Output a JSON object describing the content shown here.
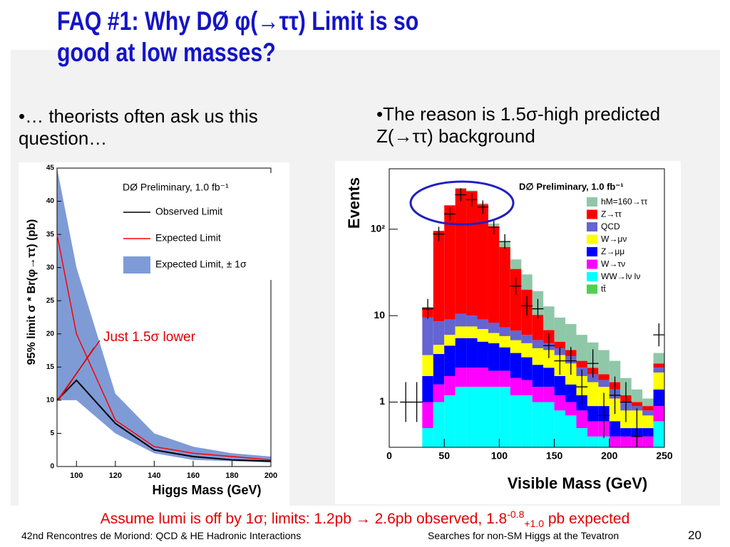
{
  "slide": {
    "title": [
      "FAQ #1: Why DØ φ(→ττ) Limit is so",
      "good at low masses?"
    ],
    "left_bullet": "•… theorists often ask us this question…",
    "right_bullet": "•The reason is 1.5σ-high predicted Z(→ττ) background",
    "note": {
      "main": "Assume lumi is off by 1σ; limits: 1.2pb → 2.6pb observed, 1.8",
      "sup": "-0.8",
      "sub": "+1.0",
      "end": " pb expected"
    },
    "footer_left": "42nd Rencontres de Moriond: QCD & HE Hadronic Interactions",
    "footer_center": "Searches for non-SM Higgs at the Tevatron",
    "page_number": 20
  },
  "chart_data": [
    {
      "type": "line",
      "legend_title": "DØ Preliminary, 1.0 fb⁻¹",
      "x_label": "Higgs Mass (GeV)",
      "y_label": "95% limit σ * Br(φ→ττ) (pb)",
      "annotation": "Just 1.5σ lower",
      "x": [
        90,
        100,
        120,
        140,
        160,
        180,
        200
      ],
      "series": [
        {
          "name": "Observed Limit",
          "color": "#000000",
          "values": [
            10,
            13,
            6.5,
            2.5,
            1.5,
            1,
            0.8
          ]
        },
        {
          "name": "Expected Limit",
          "color": "#ff0000",
          "values": [
            35,
            20,
            7,
            3,
            2,
            1.5,
            1
          ]
        },
        {
          "name": "Expected Limit, ± 1σ",
          "color": "#7f9bd6",
          "lower": [
            10,
            10,
            5,
            2,
            1,
            0.8,
            0.6
          ],
          "upper": [
            45,
            30,
            11,
            5,
            3,
            2,
            1.5
          ]
        }
      ],
      "xlim": [
        90,
        200
      ],
      "xticks": [
        100,
        120,
        140,
        160,
        180,
        200
      ],
      "ylim": [
        0,
        45
      ],
      "yticks": [
        0,
        5,
        10,
        15,
        20,
        25,
        30,
        35,
        40,
        45
      ]
    },
    {
      "type": "histogram",
      "legend_title": "D∅ Preliminary, 1.0 fb⁻¹",
      "x_label": "Visible Mass (GeV)",
      "y_label": "Events",
      "log_scale": true,
      "bins": [
        30,
        40,
        50,
        60,
        70,
        80,
        90,
        100,
        110,
        120,
        130,
        140,
        150,
        160,
        170,
        180,
        190,
        200,
        210,
        220,
        230,
        240,
        250
      ],
      "series": [
        {
          "name": "hM=160→ττ",
          "color": "#8fc8a8",
          "values": [
            0,
            0,
            1,
            4,
            5,
            6,
            8,
            10,
            10,
            10,
            9,
            6,
            4.5,
            4,
            3,
            2.4,
            1.9,
            1.3,
            0.7,
            0.4,
            0.2,
            0.9
          ]
        },
        {
          "name": "Z→ττ",
          "color": "#ff0000",
          "values": [
            3,
            87,
            180,
            285,
            265,
            185,
            100,
            55,
            28,
            14,
            5,
            2,
            0.8,
            0.6,
            0.5,
            0.4,
            0.3,
            0.3,
            0.2,
            0.1,
            0.1,
            0.3
          ]
        },
        {
          "name": "QCD",
          "color": "#6464d2",
          "values": [
            6,
            4,
            3,
            3,
            2.5,
            2,
            2,
            1.5,
            1.5,
            1.2,
            1,
            0.8,
            0.7,
            0.6,
            0.5,
            0.4,
            0.3,
            0.3,
            0.2,
            0.1,
            0.1,
            0.3
          ]
        },
        {
          "name": "W→μν",
          "color": "#ffff00",
          "values": [
            1.5,
            1,
            1.5,
            2,
            2,
            2,
            1.5,
            1.5,
            1.5,
            1.5,
            1.5,
            1.5,
            1.5,
            1.2,
            0.8,
            0.8,
            0.6,
            0.5,
            0.3,
            0.3,
            0.2,
            0.8
          ]
        },
        {
          "name": "Z→μμ",
          "color": "#0000ff",
          "values": [
            1,
            2,
            2.5,
            3,
            3,
            2.5,
            2.5,
            2,
            1.8,
            1.5,
            1.2,
            1,
            0.8,
            0.6,
            0.4,
            0.3,
            0.3,
            0.2,
            0.1,
            0.1,
            0.1,
            0.5
          ]
        },
        {
          "name": "W→τν",
          "color": "#ff00ff",
          "values": [
            0.5,
            0.6,
            0.8,
            1,
            1,
            1,
            0.8,
            0.8,
            0.7,
            0.6,
            0.5,
            0.5,
            0.4,
            0.3,
            0.3,
            0.2,
            0.2,
            0.1,
            0.1,
            0.1,
            0.1,
            0.3
          ]
        },
        {
          "name": "WW→lν lν",
          "color": "#00ffff",
          "values": [
            0.5,
            1,
            1.2,
            1.5,
            1.5,
            1.5,
            1.5,
            1.5,
            1.2,
            1.2,
            1,
            1,
            0.8,
            0.7,
            0.5,
            0.4,
            0.4,
            0.3,
            0.3,
            0.3,
            0.3,
            0.6
          ]
        },
        {
          "name": "tt̄",
          "color": "#50d050",
          "values": [
            0,
            0,
            0,
            0,
            0,
            0,
            0,
            0,
            0,
            0,
            0,
            0,
            0,
            0,
            0,
            0,
            0,
            0,
            0,
            0,
            0,
            0
          ]
        }
      ],
      "data_points": {
        "x": [
          15,
          25,
          35,
          45,
          55,
          65,
          75,
          85,
          95,
          105,
          115,
          125,
          135,
          145,
          155,
          165,
          175,
          185,
          195,
          205,
          215,
          225,
          245
        ],
        "values": [
          1,
          1,
          12,
          88,
          150,
          250,
          220,
          180,
          105,
          72,
          22,
          13,
          12,
          4.5,
          3,
          3,
          1.5,
          2.8,
          0.7,
          1.2,
          1,
          0.4,
          6
        ]
      },
      "xlim": [
        0,
        250
      ],
      "xticks": [
        0,
        50,
        100,
        150,
        200,
        250
      ],
      "ylim": [
        0.3,
        500
      ],
      "yticks": [
        1,
        10,
        {
          "value": 100,
          "label": "10²"
        }
      ]
    }
  ]
}
